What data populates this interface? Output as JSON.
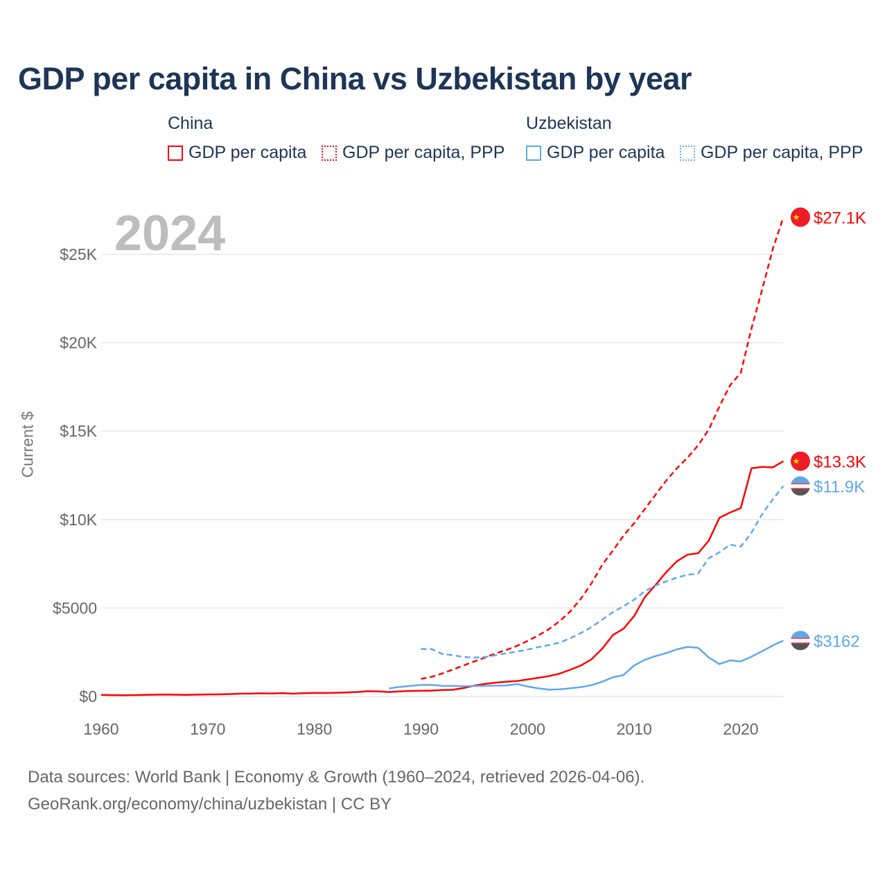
{
  "chart_data": {
    "type": "line",
    "title": "GDP per capita in China vs Uzbekistan by year",
    "xlabel": "",
    "ylabel": "Current $",
    "xlim": [
      1960,
      2024
    ],
    "ylim": [
      0,
      27500
    ],
    "grid": true,
    "year_label": "2024",
    "x_ticks": [
      1960,
      1970,
      1980,
      1990,
      2000,
      2010,
      2020
    ],
    "x_tick_labels": [
      "1960",
      "1970",
      "1980",
      "1990",
      "2000",
      "2010",
      "2020"
    ],
    "y_ticks": [
      0,
      5000,
      10000,
      15000,
      20000,
      25000
    ],
    "y_tick_labels": [
      "$0",
      "$5000",
      "$10K",
      "$15K",
      "$20K",
      "$25K"
    ],
    "legend": {
      "placement": "top",
      "groups": [
        {
          "name": "China",
          "items": [
            "GDP per capita",
            "GDP per capita, PPP"
          ]
        },
        {
          "name": "Uzbekistan",
          "items": [
            "GDP per capita",
            "GDP per capita, PPP"
          ]
        }
      ]
    },
    "series": [
      {
        "name": "China GDP per capita",
        "country": "China",
        "style": "solid",
        "color": "#ff0000",
        "start": 1960,
        "end_label": "$13.3K",
        "flag": "china",
        "values": [
          90,
          76,
          70,
          74,
          85,
          98,
          104,
          97,
          91,
          100,
          113,
          119,
          132,
          157,
          160,
          178,
          165,
          185,
          156,
          184,
          195,
          197,
          203,
          225,
          251,
          294,
          282,
          252,
          284,
          311,
          318,
          333,
          366,
          377,
          473,
          610,
          709,
          781,
          829,
          873,
          959,
          1053,
          1149,
          1289,
          1509,
          1753,
          2099,
          2694,
          3468,
          3832,
          4550,
          5614,
          6301,
          7020,
          7636,
          8016,
          8094,
          8817,
          10100,
          10400,
          10650,
          12900,
          12980,
          12950,
          13300
        ]
      },
      {
        "name": "China GDP per capita, PPP",
        "country": "China",
        "style": "dashed",
        "color": "#ff0000",
        "start": 1990,
        "end_label": "$27.1K",
        "flag": "china",
        "values": [
          990,
          1110,
          1300,
          1520,
          1750,
          1980,
          2200,
          2430,
          2630,
          2860,
          3140,
          3450,
          3800,
          4250,
          4810,
          5530,
          6400,
          7440,
          8240,
          9100,
          9800,
          10600,
          11400,
          12200,
          12900,
          13500,
          14200,
          15100,
          16400,
          17600,
          18300,
          20800,
          23000,
          25300,
          27100
        ]
      },
      {
        "name": "Uzbekistan GDP per capita",
        "country": "Uzbekistan",
        "style": "solid",
        "color": "#5ea8ed",
        "start": 1987,
        "end_label": "$3162",
        "flag": "uzbekistan",
        "values": [
          450,
          540,
          590,
          650,
          650,
          600,
          590,
          580,
          590,
          600,
          610,
          620,
          700,
          560,
          460,
          380,
          400,
          460,
          530,
          640,
          830,
          1080,
          1210,
          1750,
          2070,
          2280,
          2450,
          2660,
          2800,
          2750,
          2200,
          1830,
          2040,
          1980,
          2250,
          2560,
          2880,
          3162
        ]
      },
      {
        "name": "Uzbekistan GDP per capita, PPP",
        "country": "Uzbekistan",
        "style": "dashed",
        "color": "#5ea8ed",
        "start": 1990,
        "end_label": "$11.9K",
        "flag": "uzbekistan",
        "values": [
          2680,
          2680,
          2400,
          2330,
          2230,
          2200,
          2230,
          2330,
          2440,
          2530,
          2650,
          2790,
          2900,
          3040,
          3290,
          3590,
          3920,
          4350,
          4760,
          5100,
          5480,
          5950,
          6270,
          6500,
          6720,
          6880,
          6950,
          7820,
          8150,
          8580,
          8470,
          9250,
          10300,
          11150,
          11900
        ]
      }
    ]
  },
  "footer": {
    "line1": "Data sources: World Bank | Economy & Growth (1960–2024, retrieved 2026-04-06).",
    "line2": "GeoRank.org/economy/china/uzbekistan | CC BY"
  }
}
